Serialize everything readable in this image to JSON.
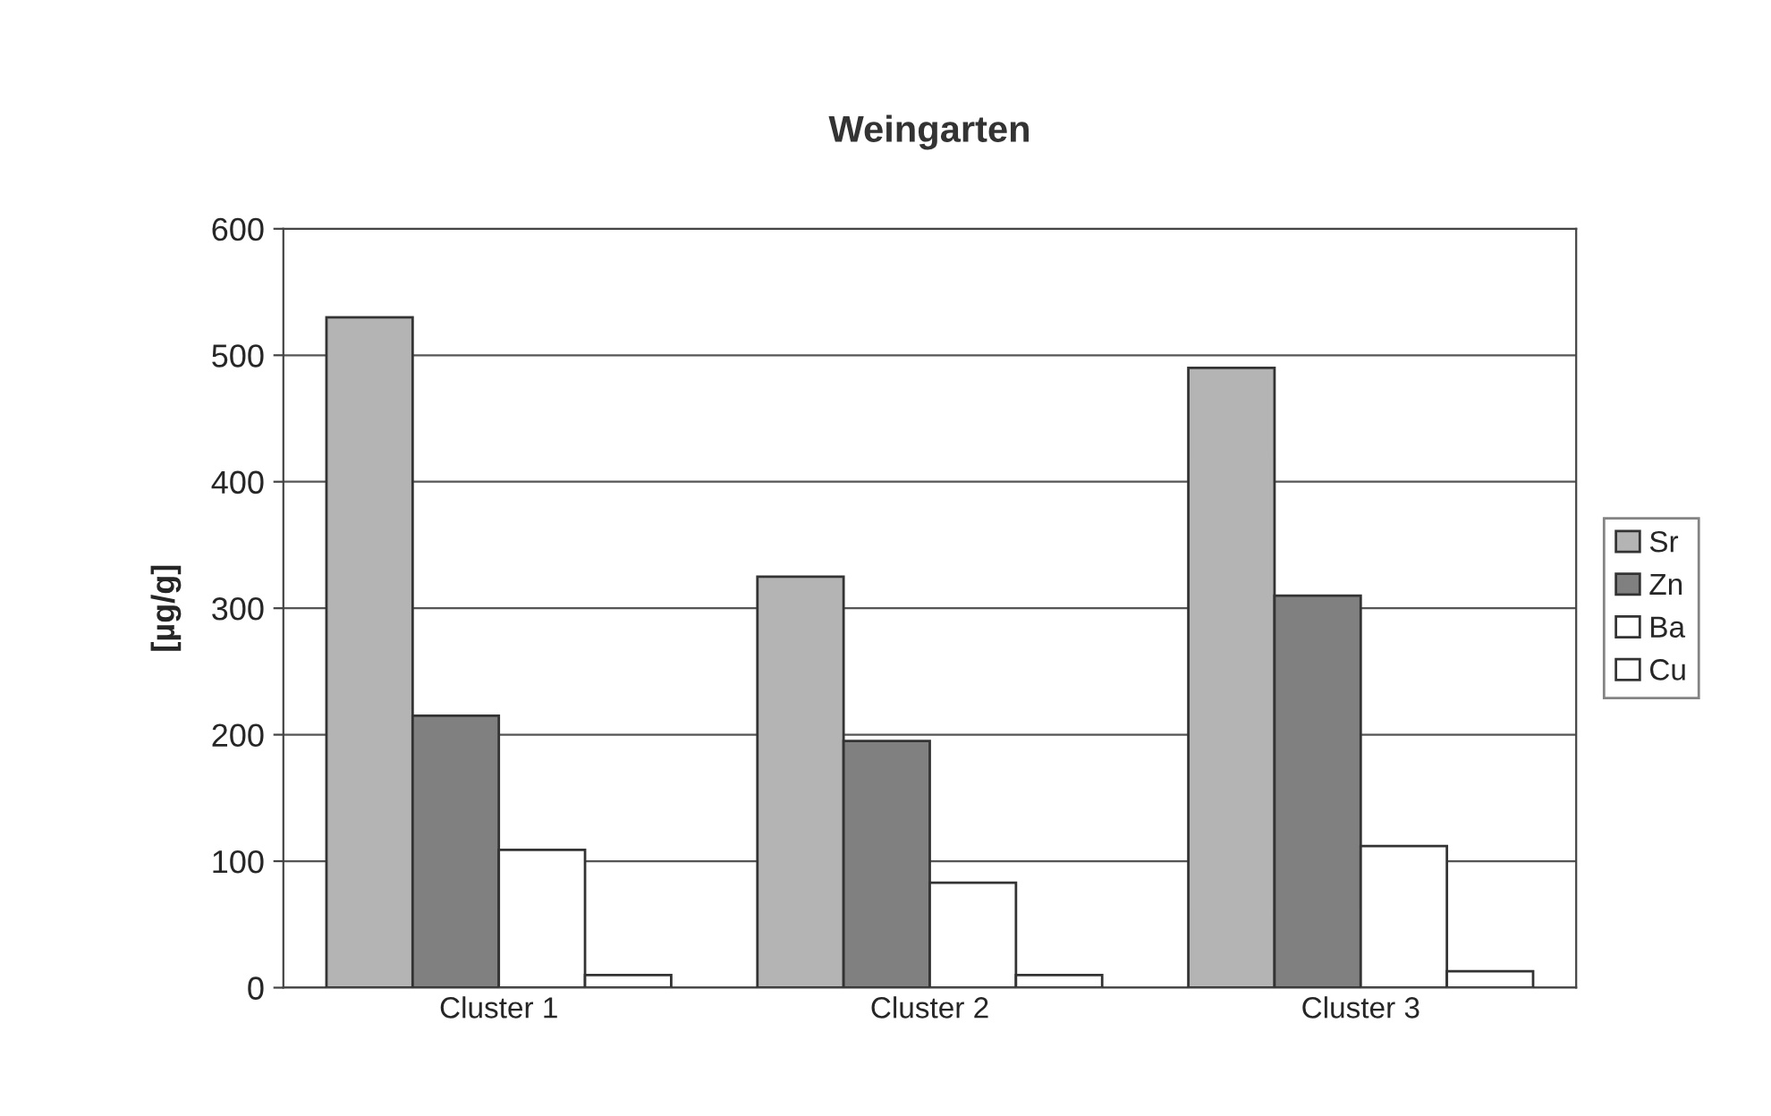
{
  "chart_data": {
    "type": "bar",
    "title": "Weingarten",
    "ylabel": "[µg/g]",
    "categories": [
      "Cluster 1",
      "Cluster 2",
      "Cluster 3"
    ],
    "series": [
      {
        "name": "Sr",
        "color": "#b4b4b4",
        "values": [
          530,
          325,
          490
        ]
      },
      {
        "name": "Zn",
        "color": "#808080",
        "values": [
          215,
          195,
          310
        ]
      },
      {
        "name": "Ba",
        "color": "#ffffff",
        "values": [
          109,
          83,
          112
        ]
      },
      {
        "name": "Cu",
        "color": "#ffffff",
        "values": [
          10,
          10,
          13
        ]
      }
    ],
    "ylim": [
      0,
      600
    ],
    "yticks": [
      0,
      100,
      200,
      300,
      400,
      500,
      600
    ],
    "grid": "y",
    "legend": "right"
  }
}
